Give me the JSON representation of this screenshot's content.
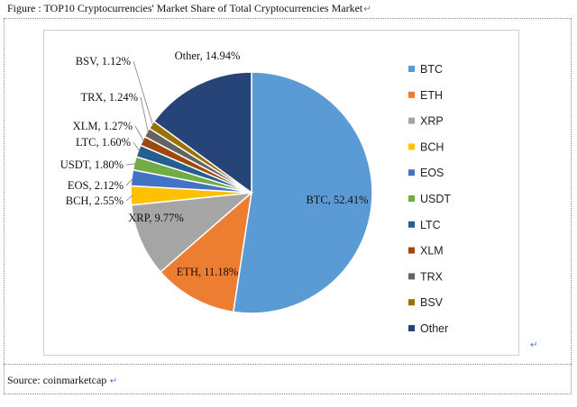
{
  "figure": {
    "caption": "Figure : TOP10 Cryptocurrencies' Market Share of Total Cryptocurrencies Market",
    "source": "Source: coinmarketcap"
  },
  "chart_data": {
    "type": "pie",
    "categories": [
      "BTC",
      "ETH",
      "XRP",
      "BCH",
      "EOS",
      "USDT",
      "LTC",
      "XLM",
      "TRX",
      "BSV",
      "Other"
    ],
    "values": [
      52.41,
      11.18,
      9.77,
      2.55,
      2.12,
      1.8,
      1.6,
      1.27,
      1.24,
      1.12,
      14.94
    ],
    "data_labels": [
      "BTC, 52.41%",
      "ETH, 11.18%",
      "XRP, 9.77%",
      "BCH, 2.55%",
      "EOS, 2.12%",
      "USDT, 1.80%",
      "LTC, 1.60%",
      "XLM, 1.27%",
      "TRX, 1.24%",
      "BSV, 1.12%",
      "Other, 14.94%"
    ],
    "colors": [
      "#5b9bd5",
      "#ed7d31",
      "#a5a5a5",
      "#ffc000",
      "#4472c4",
      "#70ad47",
      "#255e91",
      "#9e480e",
      "#636363",
      "#997300",
      "#264478"
    ],
    "legend": "right",
    "start_angle": "12 o'clock",
    "direction": "clockwise"
  }
}
